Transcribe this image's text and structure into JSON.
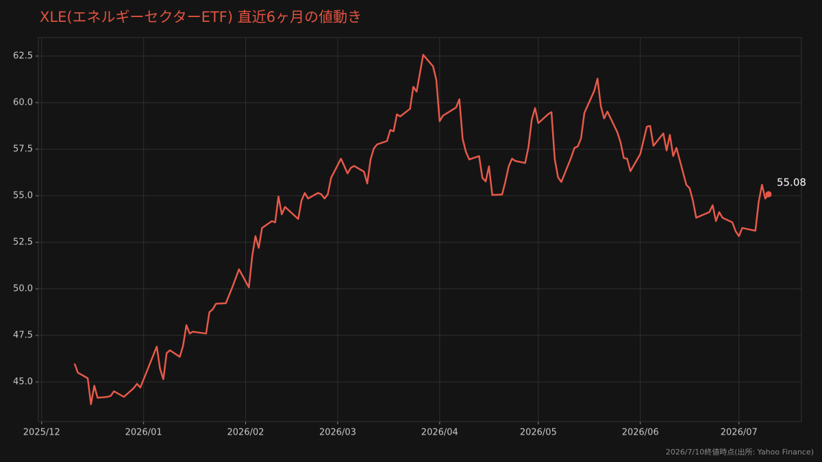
{
  "chart_data": {
    "type": "line",
    "title": "XLE(エネルギーセクターETF) 直近6ヶ月の値動き",
    "source": "2026/7/10終値時点(出所: Yahoo Finance)",
    "color": "#e8594a",
    "grid": true,
    "x": [
      "2025-12-11",
      "2025-12-12",
      "2025-12-15",
      "2025-12-16",
      "2025-12-17",
      "2025-12-18",
      "2025-12-21",
      "2025-12-22",
      "2025-12-23",
      "2025-12-26",
      "2025-12-29",
      "2025-12-30",
      "2025-12-31",
      "2026-01-05",
      "2026-01-06",
      "2026-01-07",
      "2026-01-08",
      "2026-01-09",
      "2026-01-12",
      "2026-01-13",
      "2026-01-14",
      "2026-01-15",
      "2026-01-16",
      "2026-01-20",
      "2026-01-21",
      "2026-01-22",
      "2026-01-23",
      "2026-01-26",
      "2026-01-28",
      "2026-01-30",
      "2026-02-02",
      "2026-02-03",
      "2026-02-04",
      "2026-02-05",
      "2026-02-06",
      "2026-02-09",
      "2026-02-10",
      "2026-02-11",
      "2026-02-12",
      "2026-02-13",
      "2026-02-17",
      "2026-02-18",
      "2026-02-19",
      "2026-02-20",
      "2026-02-23",
      "2026-02-24",
      "2026-02-25",
      "2026-02-26",
      "2026-02-27",
      "2026-03-02",
      "2026-03-03",
      "2026-03-04",
      "2026-03-05",
      "2026-03-06",
      "2026-03-09",
      "2026-03-10",
      "2026-03-11",
      "2026-03-12",
      "2026-03-13",
      "2026-03-16",
      "2026-03-17",
      "2026-03-18",
      "2026-03-19",
      "2026-03-20",
      "2026-03-23",
      "2026-03-24",
      "2026-03-25",
      "2026-03-27",
      "2026-03-30",
      "2026-03-31",
      "2026-04-01",
      "2026-04-02",
      "2026-04-05",
      "2026-04-06",
      "2026-04-07",
      "2026-04-08",
      "2026-04-09",
      "2026-04-10",
      "2026-04-13",
      "2026-04-14",
      "2026-04-15",
      "2026-04-16",
      "2026-04-17",
      "2026-04-20",
      "2026-04-21",
      "2026-04-22",
      "2026-04-23",
      "2026-04-24",
      "2026-04-27",
      "2026-04-28",
      "2026-04-29",
      "2026-04-30",
      "2026-05-01",
      "2026-05-04",
      "2026-05-05",
      "2026-05-06",
      "2026-05-07",
      "2026-05-08",
      "2026-05-11",
      "2026-05-12",
      "2026-05-13",
      "2026-05-14",
      "2026-05-15",
      "2026-05-18",
      "2026-05-19",
      "2026-05-20",
      "2026-05-21",
      "2026-05-22",
      "2026-05-25",
      "2026-05-26",
      "2026-05-27",
      "2026-05-28",
      "2026-05-29",
      "2026-06-01",
      "2026-06-02",
      "2026-06-03",
      "2026-06-04",
      "2026-06-05",
      "2026-06-08",
      "2026-06-09",
      "2026-06-10",
      "2026-06-11",
      "2026-06-12",
      "2026-06-15",
      "2026-06-16",
      "2026-06-17",
      "2026-06-18",
      "2026-06-22",
      "2026-06-23",
      "2026-06-24",
      "2026-06-25",
      "2026-06-26",
      "2026-06-29",
      "2026-06-30",
      "2026-07-01",
      "2026-07-02",
      "2026-07-06",
      "2026-07-07",
      "2026-07-08",
      "2026-07-09",
      "2026-07-10"
    ],
    "values": [
      45.99,
      45.5,
      45.2,
      43.8,
      44.8,
      44.15,
      44.2,
      44.25,
      44.5,
      44.2,
      44.67,
      44.9,
      44.7,
      46.9,
      45.7,
      45.15,
      46.55,
      46.7,
      46.35,
      46.95,
      48.05,
      47.6,
      47.7,
      47.6,
      48.75,
      48.9,
      49.2,
      49.23,
      50.1,
      51.05,
      50.08,
      51.73,
      52.83,
      52.2,
      53.27,
      53.64,
      53.57,
      54.96,
      54.0,
      54.4,
      53.75,
      54.74,
      55.15,
      54.85,
      55.15,
      55.08,
      54.85,
      55.08,
      55.96,
      56.99,
      56.6,
      56.2,
      56.5,
      56.6,
      56.29,
      55.66,
      56.95,
      57.54,
      57.76,
      57.94,
      58.53,
      58.46,
      59.37,
      59.26,
      59.67,
      60.85,
      60.59,
      62.57,
      61.95,
      61.21,
      59.0,
      59.3,
      59.63,
      59.74,
      60.18,
      58.05,
      57.35,
      56.95,
      57.13,
      55.96,
      55.77,
      56.58,
      55.04,
      55.07,
      55.77,
      56.58,
      56.99,
      56.87,
      56.76,
      57.61,
      59.08,
      59.71,
      58.9,
      59.38,
      59.49,
      56.96,
      55.99,
      55.74,
      57.06,
      57.57,
      57.65,
      58.09,
      59.45,
      60.63,
      61.29,
      59.82,
      59.15,
      59.52,
      58.42,
      57.87,
      57.02,
      56.99,
      56.32,
      57.24,
      57.98,
      58.71,
      58.75,
      57.68,
      58.35,
      57.43,
      58.27,
      57.13,
      57.57,
      55.59,
      55.4,
      54.74,
      53.82,
      54.12,
      54.49,
      53.64,
      54.12,
      53.82,
      53.57,
      53.09,
      52.83,
      53.27,
      53.12,
      54.67,
      55.59,
      54.85,
      55.08
    ],
    "xlim": [
      "2025-11-30",
      "2026-07-20"
    ],
    "xticks": [
      {
        "value": "2025-12-01",
        "label": "2025/12"
      },
      {
        "value": "2026-01-01",
        "label": "2026/01"
      },
      {
        "value": "2026-02-01",
        "label": "2026/02"
      },
      {
        "value": "2026-03-01",
        "label": "2026/03"
      },
      {
        "value": "2026-04-01",
        "label": "2026/04"
      },
      {
        "value": "2026-05-01",
        "label": "2026/05"
      },
      {
        "value": "2026-06-01",
        "label": "2026/06"
      },
      {
        "value": "2026-07-01",
        "label": "2026/07"
      }
    ],
    "ylim": [
      42.87,
      63.49
    ],
    "yticks": [
      {
        "value": 45,
        "label": "45.0"
      },
      {
        "value": 47.5,
        "label": "47.5"
      },
      {
        "value": 50,
        "label": "50.0"
      },
      {
        "value": 52.5,
        "label": "52.5"
      },
      {
        "value": 55,
        "label": "55.0"
      },
      {
        "value": 57.5,
        "label": "57.5"
      },
      {
        "value": 60,
        "label": "60.0"
      },
      {
        "value": 62.5,
        "label": "62.5"
      }
    ]
  }
}
